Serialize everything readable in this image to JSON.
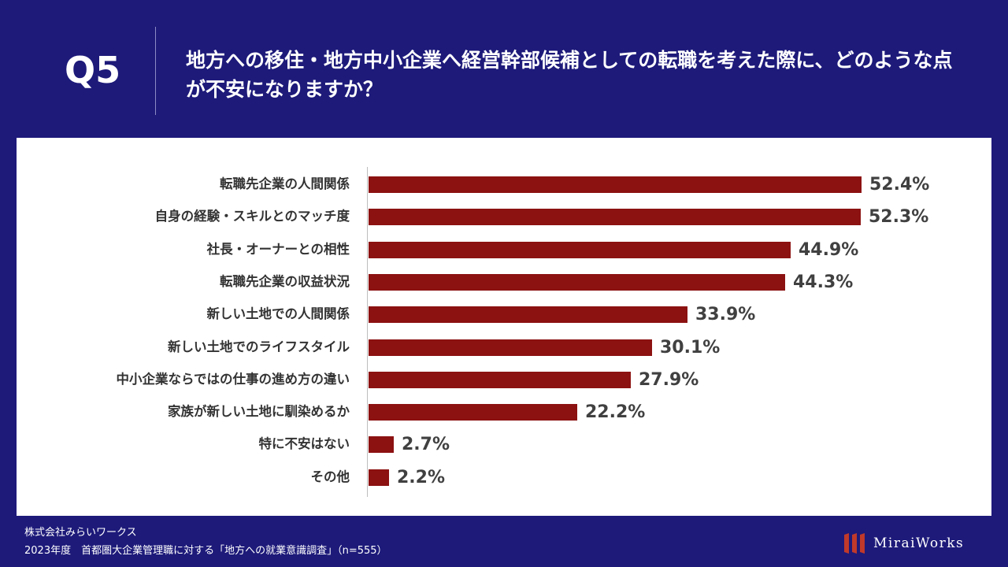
{
  "header": {
    "q_label": "Q5",
    "question": "地方への移住・地方中小企業へ経営幹部候補としての転職を考えた際に、どのような点が不安になりますか？"
  },
  "chart_data": {
    "type": "bar",
    "orientation": "horizontal",
    "title": "地方への移住・地方中小企業へ経営幹部候補としての転職を考えた際に、どのような点が不安になりますか？",
    "xlabel": "",
    "ylabel": "",
    "unit": "%",
    "xlim": [
      0,
      52.4
    ],
    "grid": false,
    "bar_color": "#8c1111",
    "categories": [
      "転職先企業の人間関係",
      "自身の経験・スキルとのマッチ度",
      "社長・オーナーとの相性",
      "転職先企業の収益状況",
      "新しい土地での人間関係",
      "新しい土地でのライフスタイル",
      "中小企業ならではの仕事の進め方の違い",
      "家族が新しい土地に馴染めるか",
      "特に不安はない",
      "その他"
    ],
    "values": [
      52.4,
      52.3,
      44.9,
      44.3,
      33.9,
      30.1,
      27.9,
      22.2,
      2.7,
      2.2
    ],
    "value_labels": [
      "52.4%",
      "52.3%",
      "44.9%",
      "44.3%",
      "33.9%",
      "30.1%",
      "27.9%",
      "22.2%",
      "2.7%",
      "2.2%"
    ]
  },
  "footer": {
    "company": "株式会社みらいワークス",
    "source": "2023年度　首都圏大企業管理職に対する「地方への就業意識調査」（n=555）"
  },
  "logo": {
    "text": "MiraiWorks",
    "color": "#c0392b"
  },
  "colors": {
    "background": "#1d1a7a",
    "panel": "#ffffff",
    "bar": "#8c1111"
  }
}
